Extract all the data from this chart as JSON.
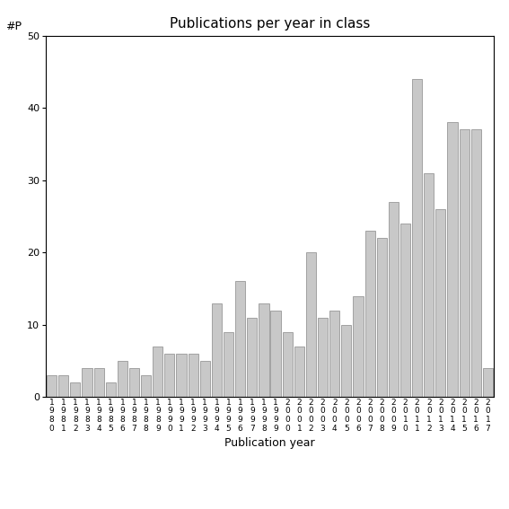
{
  "title": "Publications per year in class",
  "xlabel": "Publication year",
  "ylabel": "#P",
  "ylim": [
    0,
    50
  ],
  "yticks": [
    0,
    10,
    20,
    30,
    40,
    50
  ],
  "bar_color": "#c8c8c8",
  "bar_edgecolor": "#888888",
  "background_color": "#ffffff",
  "categories": [
    "1980",
    "1981",
    "1982",
    "1983",
    "1984",
    "1985",
    "1986",
    "1987",
    "1988",
    "1989",
    "1990",
    "1991",
    "1992",
    "1993",
    "1994",
    "1995",
    "1996",
    "1997",
    "1998",
    "1999",
    "2000",
    "2001",
    "2002",
    "2003",
    "2004",
    "2005",
    "2006",
    "2007",
    "2008",
    "2009",
    "2010",
    "2011",
    "2012",
    "2013",
    "2014",
    "2015",
    "2016",
    "2017"
  ],
  "values": [
    3,
    3,
    2,
    4,
    4,
    2,
    5,
    4,
    3,
    7,
    6,
    6,
    6,
    5,
    13,
    9,
    16,
    11,
    13,
    12,
    9,
    7,
    20,
    11,
    12,
    10,
    14,
    23,
    22,
    27,
    24,
    44,
    31,
    26,
    38,
    37,
    37,
    4
  ],
  "title_fontsize": 11,
  "xlabel_fontsize": 9,
  "ylabel_fontsize": 9,
  "tick_fontsize": 8,
  "xtick_fontsize": 6.5
}
